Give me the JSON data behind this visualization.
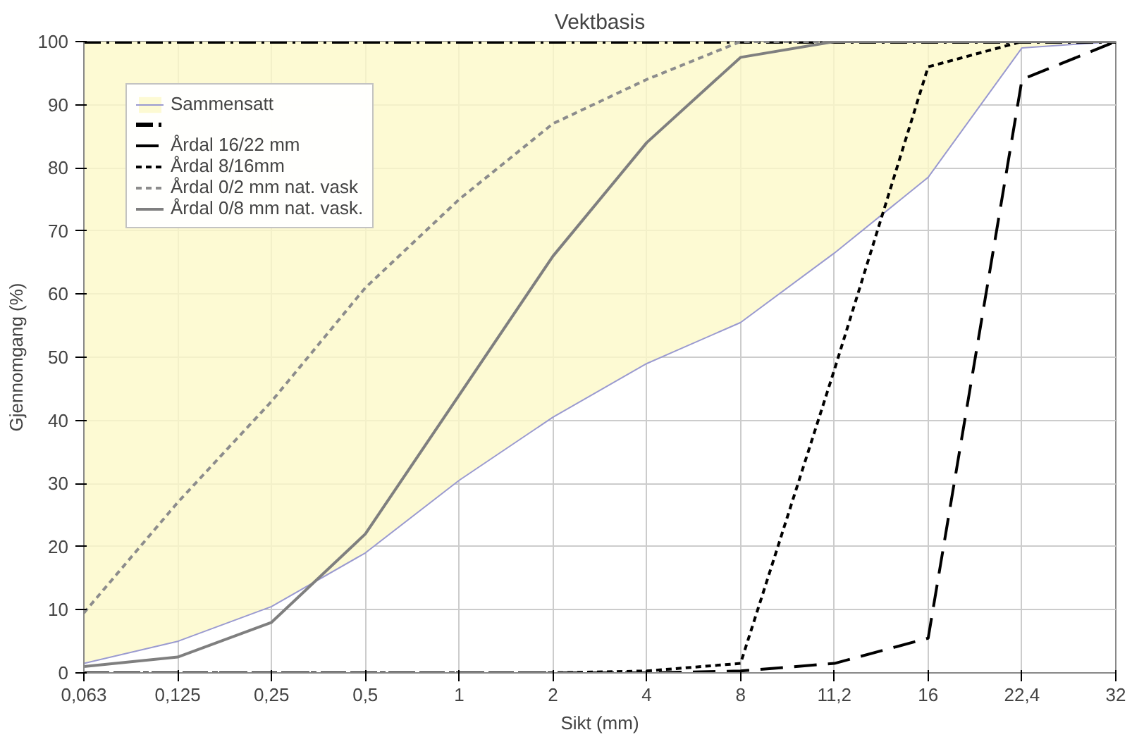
{
  "chart_data": {
    "type": "line",
    "title": "Vektbasis",
    "xlabel": "Sikt (mm)",
    "ylabel": "Gjennomgang (%)",
    "categories": [
      "0,063",
      "0,125",
      "0,25",
      "0,5",
      "1",
      "2",
      "4",
      "8",
      "11,2",
      "16",
      "22,4",
      "32"
    ],
    "ylim": [
      0,
      100
    ],
    "yticks": [
      0,
      10,
      20,
      30,
      40,
      50,
      60,
      70,
      80,
      90,
      100
    ],
    "grid": true,
    "legend": "top left",
    "marker": "none",
    "series": [
      {
        "name": "Sammensatt",
        "color": "#9a9ad0",
        "line_style": "solid",
        "values": [
          1.5,
          5,
          10.5,
          19,
          30.5,
          40.5,
          49,
          55.5,
          66.5,
          78.5,
          99,
          100
        ],
        "lower": [
          1.5,
          5,
          10.5,
          19,
          30.5,
          40.5,
          49,
          55.5,
          66.5,
          78.5,
          99,
          100
        ],
        "upper": [
          100,
          100,
          100,
          100,
          100,
          100,
          100,
          100,
          100,
          100,
          100,
          100
        ]
      },
      {
        "color": "#000000",
        "line_style": "dashdot",
        "values": [
          100,
          100,
          100,
          100,
          100,
          100,
          100,
          100,
          100,
          100,
          100,
          100
        ]
      },
      {
        "name": "Årdal 16/22 mm",
        "color": "#000000",
        "line_style": "longdash",
        "values": [
          0,
          0,
          0,
          0,
          0,
          0,
          0,
          0.3,
          1.5,
          5.5,
          94,
          100
        ]
      },
      {
        "name": "Årdal 8/16mm",
        "color": "#000000",
        "line_style": "dashed",
        "values": [
          0,
          0,
          0,
          0,
          0,
          0,
          0.3,
          1.5,
          48,
          96,
          100,
          100
        ]
      },
      {
        "name": "Årdal 0/2 mm nat. vask",
        "color": "#8c8c8c",
        "line_style": "dashed",
        "values": [
          9.5,
          27,
          43,
          61,
          75,
          87,
          94,
          100,
          100,
          100,
          100,
          100
        ]
      },
      {
        "name": "Årdal 0/8 mm nat. vask.",
        "color": "#7f7f7f",
        "line_style": "solid",
        "values": [
          1,
          2.5,
          8,
          22,
          44,
          66,
          84,
          97.5,
          100,
          100,
          100,
          100
        ]
      }
    ]
  }
}
